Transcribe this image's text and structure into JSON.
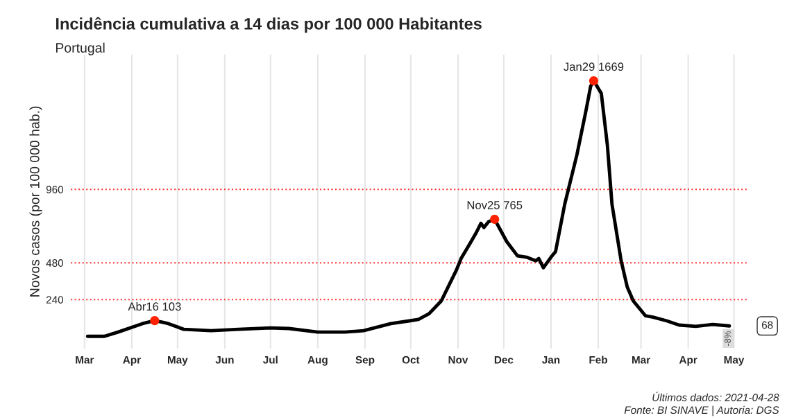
{
  "chart_data": {
    "type": "line",
    "title": "Incidência cumulativa a 14 dias por 100 000 Habitantes",
    "subtitle": "Portugal",
    "ylabel": "Novos casos (por 100 000 hab.)",
    "series": [
      {
        "color": "#000000",
        "x": [
          "2020-03-03",
          "2020-03-14",
          "2020-03-23",
          "2020-04-08",
          "2020-04-16",
          "2020-04-21",
          "2020-04-25",
          "2020-05-05",
          "2020-05-23",
          "2020-06-10",
          "2020-07-01",
          "2020-07-13",
          "2020-08-01",
          "2020-08-19",
          "2020-08-31",
          "2020-09-18",
          "2020-09-30",
          "2020-10-06",
          "2020-10-13",
          "2020-10-21",
          "2020-10-31",
          "2020-11-03",
          "2020-11-09",
          "2020-11-13",
          "2020-11-16",
          "2020-11-18",
          "2020-11-21",
          "2020-11-25",
          "2020-12-03",
          "2020-12-10",
          "2020-12-16",
          "2020-12-22",
          "2020-12-24",
          "2020-12-27",
          "2021-01-01",
          "2021-01-04",
          "2021-01-10",
          "2021-01-18",
          "2021-01-24",
          "2021-01-27",
          "2021-01-29",
          "2021-02-03",
          "2021-02-07",
          "2021-02-10",
          "2021-02-16",
          "2021-02-20",
          "2021-02-24",
          "2021-03-04",
          "2021-03-09",
          "2021-03-18",
          "2021-03-26",
          "2021-04-06",
          "2021-04-17",
          "2021-04-28"
        ],
        "values": [
          0,
          0,
          28,
          83,
          103,
          92,
          83,
          46,
          37,
          46,
          55,
          51,
          28,
          28,
          37,
          83,
          101,
          111,
          148,
          231,
          434,
          508,
          609,
          678,
          738,
          711,
          748,
          765,
          618,
          526,
          517,
          494,
          508,
          448,
          517,
          554,
          863,
          1186,
          1477,
          1633,
          1669,
          1587,
          1246,
          863,
          494,
          323,
          231,
          134,
          125,
          101,
          74,
          65,
          78,
          68
        ]
      },
      {
        "type": "scatter",
        "color": "#ff2200",
        "x": [
          "2020-04-16",
          "2020-11-25",
          "2021-01-29"
        ],
        "values": [
          103,
          765,
          1669
        ],
        "value_labels": [
          "Abr16 103",
          "Nov25 765",
          "Jan29 1669"
        ]
      }
    ],
    "xlim": [
      "2020-02-21",
      "2021-05-10"
    ],
    "xticks": [
      {
        "value": "2020-03-01",
        "label": "Mar"
      },
      {
        "value": "2020-04-01",
        "label": "Apr"
      },
      {
        "value": "2020-05-01",
        "label": "May"
      },
      {
        "value": "2020-06-01",
        "label": "Jun"
      },
      {
        "value": "2020-07-01",
        "label": "Jul"
      },
      {
        "value": "2020-08-01",
        "label": "Aug"
      },
      {
        "value": "2020-09-01",
        "label": "Sep"
      },
      {
        "value": "2020-10-01",
        "label": "Oct"
      },
      {
        "value": "2020-11-01",
        "label": "Nov"
      },
      {
        "value": "2020-12-01",
        "label": "Dec"
      },
      {
        "value": "2021-01-01",
        "label": "Jan"
      },
      {
        "value": "2021-02-01",
        "label": "Feb"
      },
      {
        "value": "2021-03-01",
        "label": "Mar"
      },
      {
        "value": "2021-04-01",
        "label": "Apr"
      },
      {
        "value": "2021-05-01",
        "label": "May"
      }
    ],
    "ylim": [
      -80,
      1840
    ],
    "yticks": [
      240,
      480,
      960
    ],
    "ref_lines": [
      {
        "axis": "y",
        "value": 240,
        "color": "#ff3030",
        "line_style": "dotted"
      },
      {
        "axis": "y",
        "value": 480,
        "color": "#ff3030",
        "line_style": "dotted"
      },
      {
        "axis": "y",
        "value": 960,
        "color": "#ff3030",
        "line_style": "dotted"
      }
    ],
    "grid": "x",
    "annotations": [
      {
        "text": "-8%",
        "x": "2021-04-28",
        "y": 68
      },
      "68",
      "Últimos dados: 2021-04-28",
      "Fonte: BI SINAVE | Autoria: DGS"
    ]
  }
}
